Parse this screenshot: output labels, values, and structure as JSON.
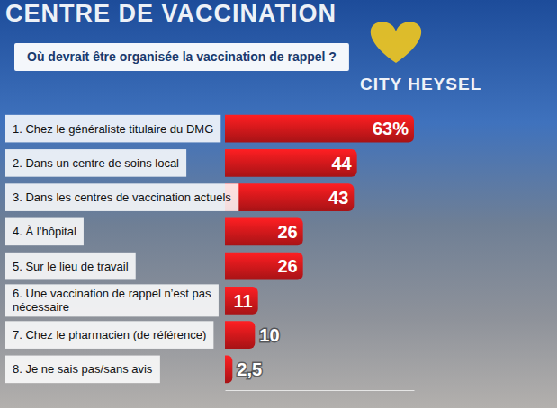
{
  "chart_data": {
    "type": "bar",
    "orientation": "horizontal",
    "title": "Où devrait être organisée la vaccination de rappel ?",
    "annotations": [
      "CENTRE DE VACCINATION",
      "CITY HEYSEL"
    ],
    "categories": [
      "1. Chez le généraliste titulaire du DMG",
      "2. Dans un centre de soins local",
      "3. Dans les centres de vaccination actuels",
      "4. À l’hôpital",
      "5. Sur le lieu de travail",
      "6. Une vaccination de rappel n’est pas nécessaire",
      "7. Chez le pharmacien (de référence)",
      "8. Je ne sais pas/sans avis"
    ],
    "values": [
      63,
      44,
      43,
      26,
      26,
      11,
      10,
      2.5
    ],
    "value_labels": [
      "63%",
      "44",
      "43",
      "26",
      "26",
      "11",
      "10",
      "2,5"
    ],
    "color": "#d7191c",
    "xlim": [
      0,
      63
    ],
    "data_labels": true,
    "tick_labels": false,
    "grid": false
  }
}
